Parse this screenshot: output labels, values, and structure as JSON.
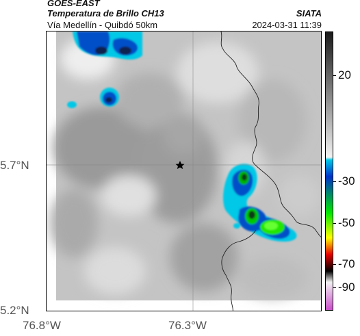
{
  "header": {
    "satellite": "GOES-EAST",
    "product": "Temperatura de Brillo CH13",
    "region": "Vía Medellín - Quibdó 50km",
    "agency": "SIATA",
    "datetime": "2024-03-31 11:39"
  },
  "map": {
    "lat_ticks": [
      "5.7°N",
      "5.2°N"
    ],
    "lon_ticks": [
      "76.8°W",
      "76.3°W"
    ],
    "marker_icon": "star-icon"
  },
  "colorbar": {
    "labels": [
      "20",
      "-30",
      "-50",
      "-70",
      "-90"
    ],
    "colors": {
      "gray_top": "#1a1a1a",
      "gray_bottom": "#f2f2f2",
      "cyan": "#00c8e6",
      "blue": "#0032c8",
      "green": "#00e600",
      "yellow": "#ffff00",
      "red": "#e60000",
      "black": "#000000",
      "magenta": "#c850c8"
    }
  }
}
